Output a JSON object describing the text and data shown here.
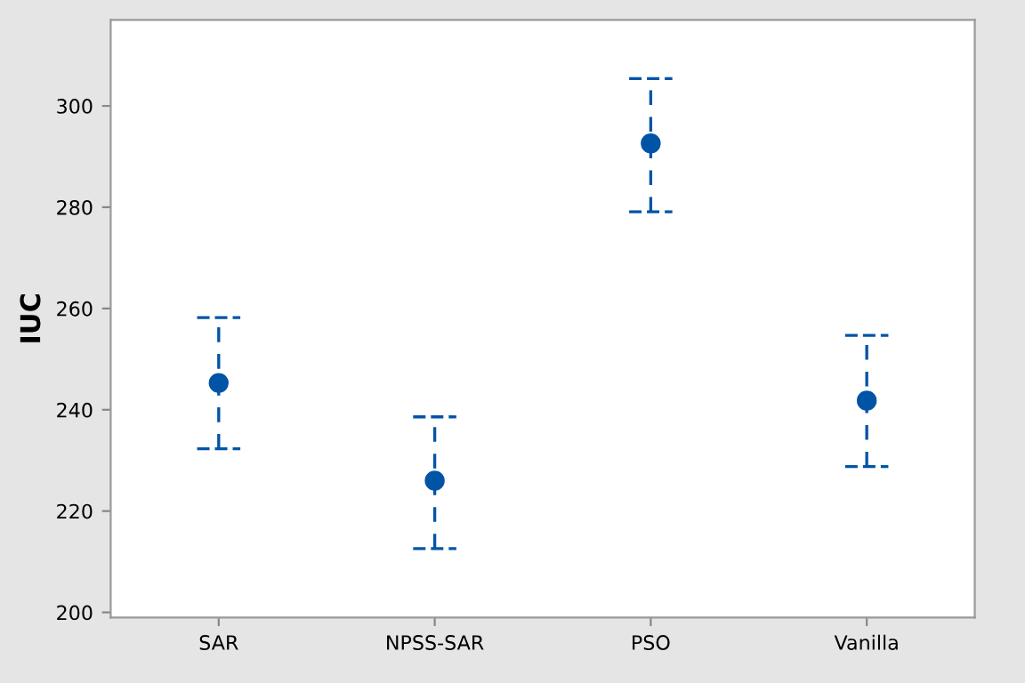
{
  "chart_data": {
    "type": "scatter",
    "ylabel": "IUC",
    "categories": [
      "SAR",
      "NPSS-SAR",
      "PSO",
      "Vanilla"
    ],
    "values": [
      245.3,
      226.0,
      292.6,
      241.8
    ],
    "errors": [
      [
        232.3,
        258.2
      ],
      [
        212.6,
        238.6
      ],
      [
        279.1,
        305.4
      ],
      [
        228.8,
        254.7
      ]
    ],
    "color": "#0054a6",
    "marker": "circle",
    "line_style": "dashed",
    "ylim": [
      199,
      317
    ],
    "yticks": [
      200,
      220,
      240,
      260,
      280,
      300
    ],
    "grid": false,
    "legend": false
  }
}
